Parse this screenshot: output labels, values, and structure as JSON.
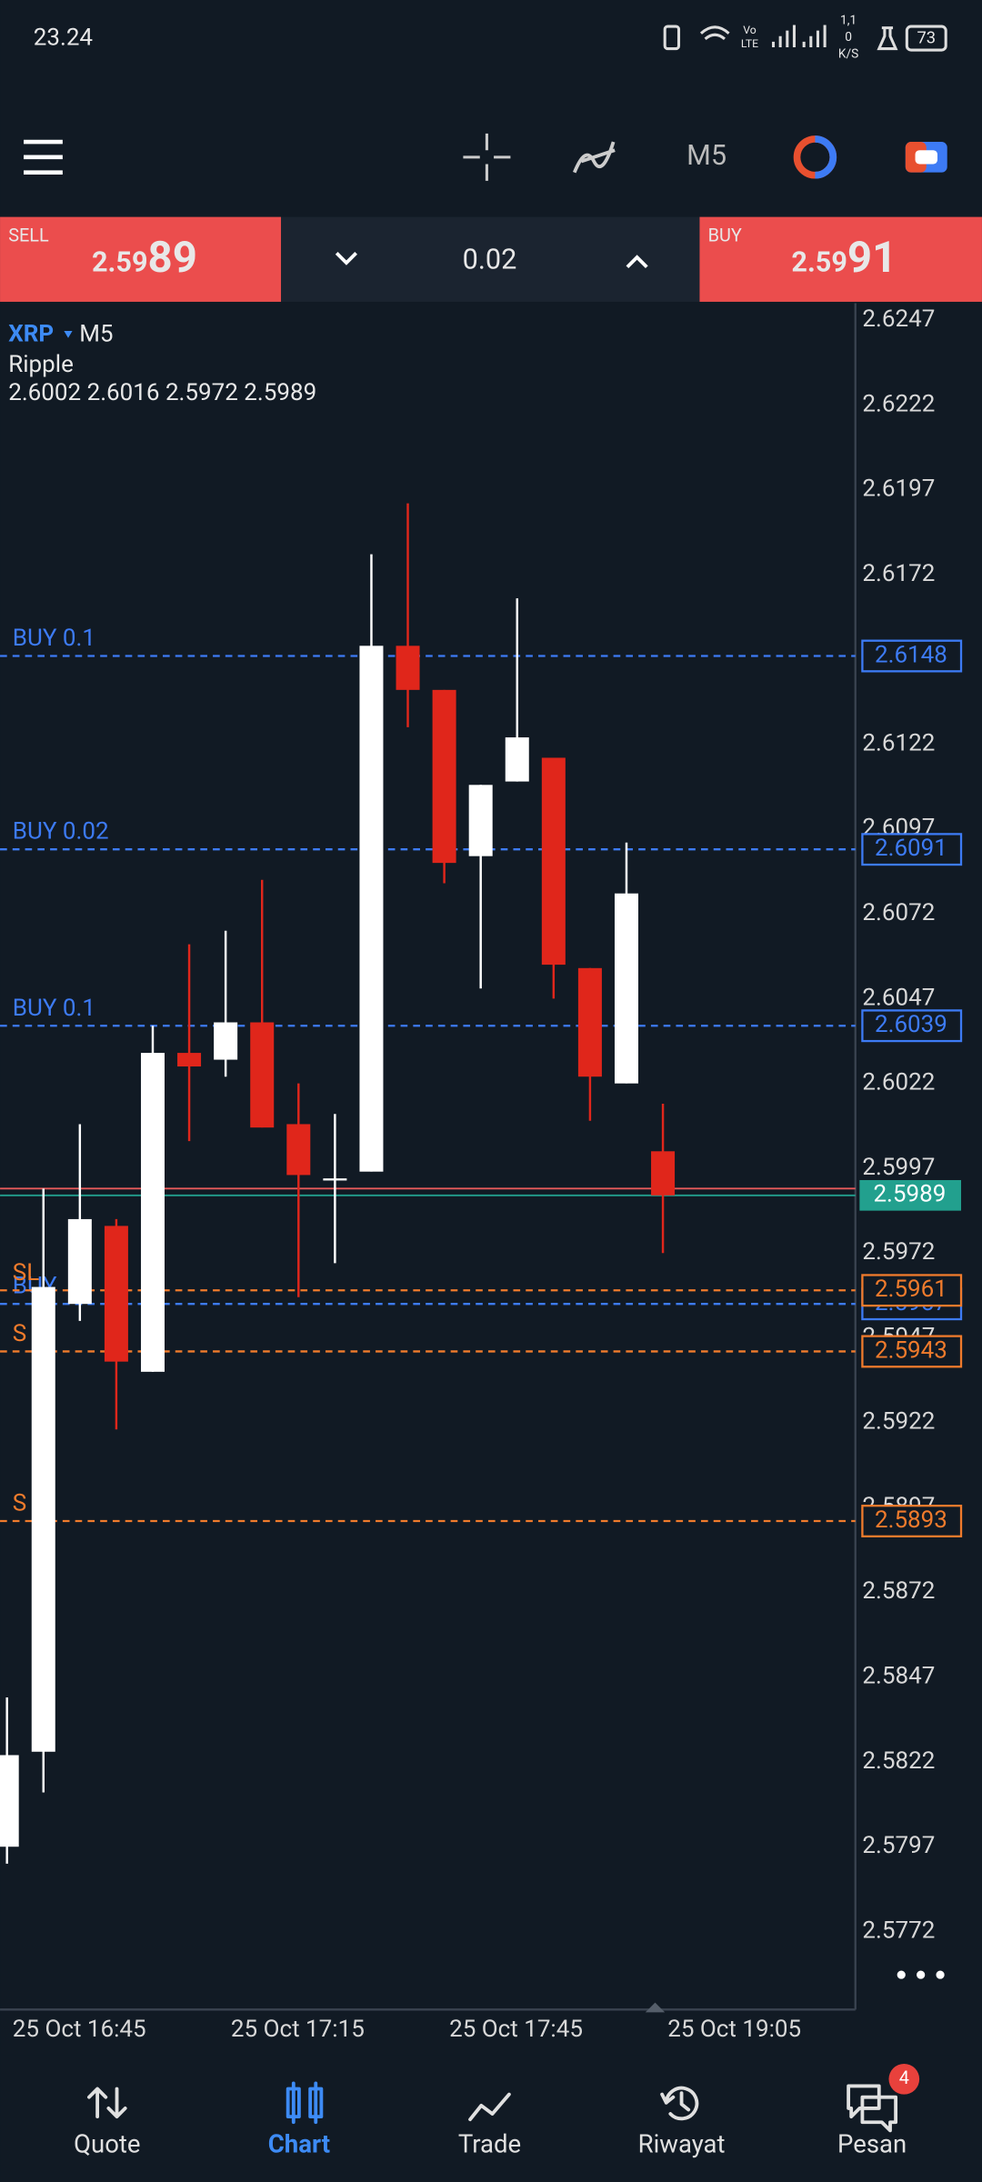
{
  "status_bar": {
    "time": "23.24",
    "network": [
      "Vo",
      "LTE"
    ],
    "speed": [
      "1,1",
      "0",
      "K/S"
    ],
    "battery": "73"
  },
  "toolbar": {
    "timeframe": "M5"
  },
  "trade_panel": {
    "sell": {
      "label": "SELL",
      "price_small": "2.59",
      "price_big": "89"
    },
    "volume": "0.02",
    "buy": {
      "label": "BUY",
      "price_small": "2.59",
      "price_big": "91"
    }
  },
  "chart_data": {
    "type": "candlestick",
    "symbol": "XRP",
    "timeframe": "M5",
    "description": "Ripple",
    "ohlc_text": "2.6002 2.6016 2.5972 2.5989",
    "ylim": [
      2.5749,
      2.6252
    ],
    "yticks": [
      2.6247,
      2.6222,
      2.6197,
      2.6172,
      2.6122,
      2.6097,
      2.6072,
      2.6047,
      2.6022,
      2.5997,
      2.5972,
      2.5947,
      2.5922,
      2.5897,
      2.5872,
      2.5847,
      2.5822,
      2.5797,
      2.5772
    ],
    "x_labels": [
      "25 Oct 16:45",
      "25 Oct 17:15",
      "25 Oct 17:45",
      "25 Oct 19:05"
    ],
    "up_color": "#ffffff",
    "down_color": "#e0261b",
    "candles": {
      "open": [
        2.5797,
        2.5825,
        2.5957,
        2.598,
        2.5937,
        2.6031,
        2.6029,
        2.604,
        2.601,
        2.5994,
        2.5996,
        2.6151,
        2.6138,
        2.6089,
        2.6111,
        2.6118,
        2.6056,
        2.6022,
        2.6002
      ],
      "high": [
        2.5841,
        2.5991,
        2.601,
        2.5982,
        2.6039,
        2.6063,
        2.6067,
        2.6082,
        2.6022,
        2.6013,
        2.6178,
        2.6193,
        2.6138,
        2.611,
        2.6165,
        2.6118,
        2.6056,
        2.6093,
        2.6016
      ],
      "low": [
        2.5792,
        2.5813,
        2.5952,
        2.592,
        2.5937,
        2.6005,
        2.6024,
        2.6009,
        2.5959,
        2.5969,
        2.5996,
        2.6127,
        2.6081,
        2.605,
        2.6111,
        2.6047,
        2.6011,
        2.6022,
        2.5972
      ],
      "close": [
        2.5824,
        2.5962,
        2.5982,
        2.594,
        2.6031,
        2.6027,
        2.604,
        2.6009,
        2.5995,
        2.5994,
        2.6151,
        2.6138,
        2.6087,
        2.611,
        2.6124,
        2.6057,
        2.6024,
        2.6078,
        2.5989
      ]
    },
    "levels": [
      {
        "label": "BUY 0.1",
        "price": 2.6148,
        "color": "#3d7bf5"
      },
      {
        "label": "BUY 0.02",
        "price": 2.6091,
        "color": "#3d7bf5"
      },
      {
        "label": "BUY 0.1",
        "price": 2.6039,
        "color": "#3d7bf5"
      },
      {
        "label": "BUY",
        "price": 2.5957,
        "color": "#3d7bf5"
      },
      {
        "label": "SL",
        "price": 2.5961,
        "color": "#f07b2c"
      },
      {
        "label": "S",
        "price": 2.5943,
        "color": "#f07b2c"
      },
      {
        "label": "S",
        "price": 2.5893,
        "color": "#f07b2c"
      }
    ],
    "ask": {
      "price": 2.5991,
      "color": "#e65a5a"
    },
    "bid": {
      "price": 2.5989,
      "color": "#22a08e"
    }
  },
  "nav": {
    "items": [
      {
        "label": "Quote",
        "active": false
      },
      {
        "label": "Chart",
        "active": true
      },
      {
        "label": "Trade",
        "active": false
      },
      {
        "label": "Riwayat",
        "active": false
      },
      {
        "label": "Pesan",
        "active": false
      }
    ],
    "badge": "4"
  }
}
